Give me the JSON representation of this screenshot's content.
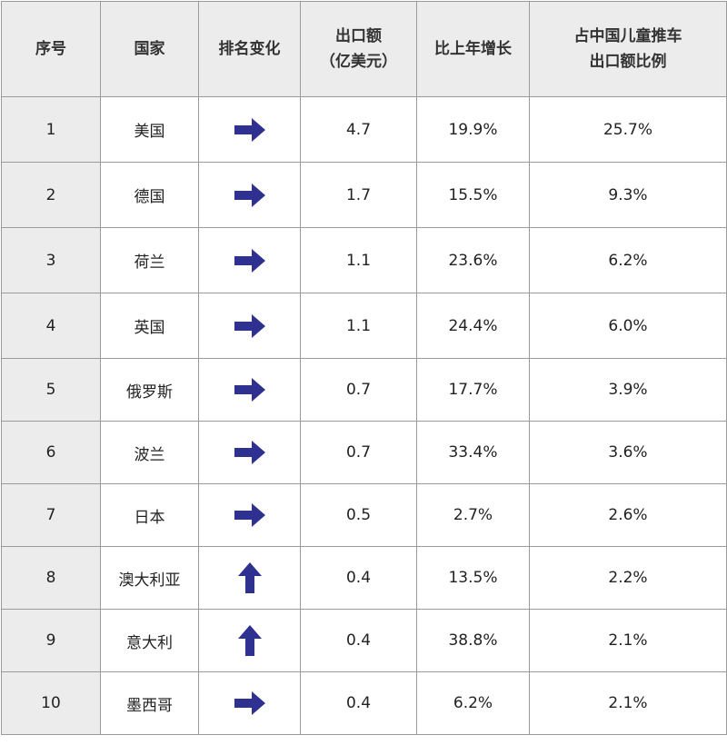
{
  "table": {
    "header": [
      "序号",
      "国家",
      "排名变化",
      "出口额\n（亿美元）",
      "比上年增长",
      "占中国儿童推车\n出口额比例"
    ],
    "rows": [
      [
        "1",
        "美国",
        "4.7",
        "19.9%",
        "25.7%"
      ],
      [
        "2",
        "德国",
        "1.7",
        "15.5%",
        "9.3%"
      ],
      [
        "3",
        "荷兰",
        "1.1",
        "23.6%",
        "6.2%"
      ],
      [
        "4",
        "英国",
        "1.1",
        "24.4%",
        "6.0%"
      ],
      [
        "5",
        "俄罗斯",
        "0.7",
        "17.7%",
        "3.9%"
      ],
      [
        "6",
        "波兰",
        "0.7",
        "33.4%",
        "3.6%"
      ],
      [
        "7",
        "日本",
        "0.5",
        "2.7%",
        "2.6%"
      ],
      [
        "8",
        "澳大利亚",
        "0.4",
        "13.5%",
        "2.2%"
      ],
      [
        "9",
        "意大利",
        "0.4",
        "38.8%",
        "2.1%"
      ],
      [
        "10",
        "墨西哥",
        "0.4",
        "6.2%",
        "2.1%"
      ]
    ],
    "arrows": [
      "right",
      "right",
      "right",
      "right",
      "right",
      "right",
      "right",
      "up",
      "up",
      "right"
    ],
    "arrow_color": "#2e3190"
  }
}
